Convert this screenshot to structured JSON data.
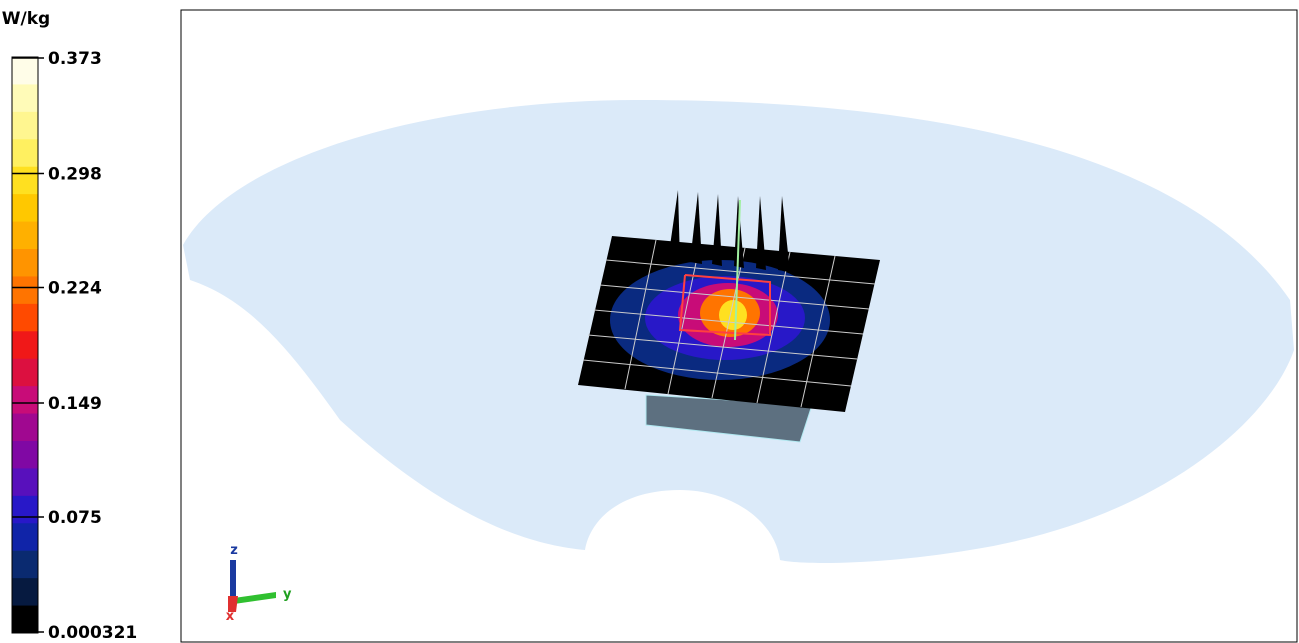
{
  "colorbar": {
    "unit": "W/kg",
    "range": [
      0.000321,
      0.373
    ],
    "ticks": [
      0.373,
      0.298,
      0.224,
      0.149,
      0.075,
      0.000321
    ],
    "colors": [
      "#fffde8",
      "#fffbb8",
      "#fff690",
      "#fff060",
      "#ffe020",
      "#ffc800",
      "#ffb000",
      "#ff9400",
      "#ff7400",
      "#ff4a00",
      "#f01818",
      "#dc1040",
      "#c80c78",
      "#a00890",
      "#8008a4",
      "#5810bc",
      "#2818c8",
      "#1024a8",
      "#0a2a70",
      "#061a40",
      "#000000"
    ]
  },
  "axes_triad": {
    "z": "z",
    "y": "y",
    "x": "x"
  }
}
